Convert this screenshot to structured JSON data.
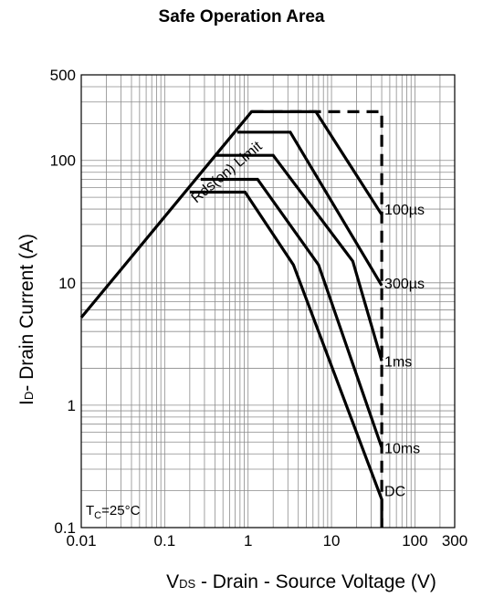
{
  "chart_data": {
    "type": "line",
    "title": "Safe Operation Area",
    "xlabel": {
      "main": "V",
      "sub": "DS",
      "rest": " - Drain - Source Voltage (V)"
    },
    "ylabel": {
      "main": "I",
      "sub": "D",
      "rest": "- Drain Current (A)"
    },
    "x_scale": "log",
    "y_scale": "log",
    "xlim": [
      0.01,
      300
    ],
    "ylim": [
      0.1,
      500
    ],
    "grid": true,
    "x_ticks": [
      {
        "value": 0.01,
        "label": "0.01"
      },
      {
        "value": 0.1,
        "label": "0.1"
      },
      {
        "value": 1,
        "label": "1"
      },
      {
        "value": 10,
        "label": "10"
      },
      {
        "value": 100,
        "label": "100"
      },
      {
        "value": 300,
        "label": "300"
      }
    ],
    "y_ticks": [
      {
        "value": 0.1,
        "label": "0.1"
      },
      {
        "value": 1,
        "label": "1"
      },
      {
        "value": 10,
        "label": "10"
      },
      {
        "value": 100,
        "label": "100"
      },
      {
        "value": 500,
        "label": "500"
      }
    ],
    "series": [
      {
        "name": "100µs",
        "style": "solid",
        "points": [
          [
            0.01,
            5.2
          ],
          [
            1.1,
            250
          ],
          [
            6.5,
            250
          ],
          [
            40,
            36
          ]
        ]
      },
      {
        "name": "300µs",
        "style": "solid",
        "points": [
          [
            0.74,
            170
          ],
          [
            3.2,
            170
          ],
          [
            40,
            9.5
          ]
        ]
      },
      {
        "name": "1ms",
        "style": "solid",
        "points": [
          [
            0.4,
            110
          ],
          [
            2.0,
            110
          ],
          [
            18,
            15
          ],
          [
            40,
            2.3
          ]
        ]
      },
      {
        "name": "10ms",
        "style": "solid",
        "points": [
          [
            0.27,
            70
          ],
          [
            1.3,
            70
          ],
          [
            7.0,
            14
          ],
          [
            40,
            0.45
          ]
        ]
      },
      {
        "name": "DC",
        "style": "solid",
        "points": [
          [
            0.2,
            55
          ],
          [
            0.92,
            55
          ],
          [
            3.5,
            14
          ],
          [
            40,
            0.17
          ],
          [
            40,
            0.1
          ]
        ]
      },
      {
        "name": "",
        "style": "dashed",
        "points": [
          [
            1.1,
            250
          ],
          [
            40,
            250
          ],
          [
            40,
            0.1
          ]
        ]
      }
    ],
    "annotations": [
      {
        "text": "Rds(on) Limit",
        "x": 0.6,
        "y": 75,
        "rotation": -40
      },
      {
        "text": "100µs",
        "x": 40,
        "y": 40
      },
      {
        "text": "300µs",
        "x": 40,
        "y": 10
      },
      {
        "text": "1ms",
        "x": 40,
        "y": 2.3
      },
      {
        "text": "10ms",
        "x": 40,
        "y": 0.45
      },
      {
        "text": "DC",
        "x": 40,
        "y": 0.2
      }
    ],
    "condition": {
      "prefix": "T",
      "sub": "C",
      "rest": "=25°C"
    }
  }
}
